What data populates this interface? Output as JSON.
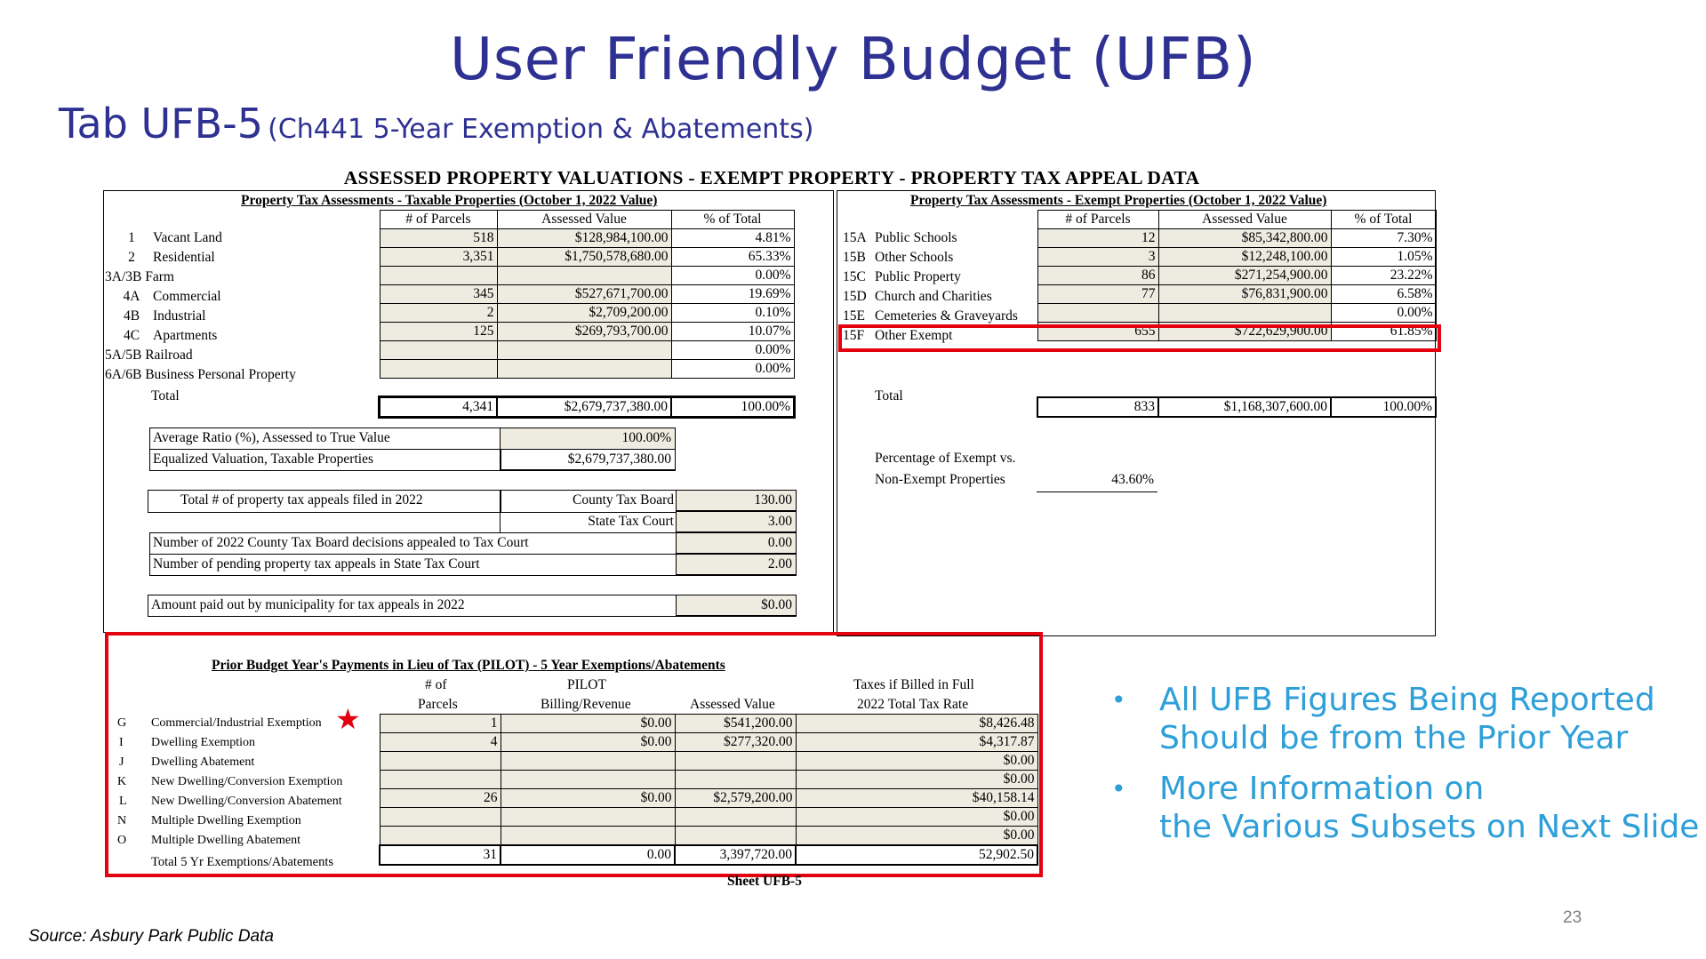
{
  "slide": {
    "title": "User Friendly Budget (UFB)",
    "subtitle_main": "Tab UFB-5",
    "subtitle_paren": "(Ch441 5-Year Exemption & Abatements)",
    "page_number": "23",
    "source": "Source: Asbury Park Public Data"
  },
  "sheet": {
    "header": "ASSESSED PROPERTY VALUATIONS - EXEMPT PROPERTY - PROPERTY TAX APPEAL DATA",
    "footer": "Sheet UFB-5"
  },
  "taxable": {
    "title": "Property Tax Assessments - Taxable Properties (October 1, 2022 Value)",
    "columns": [
      "# of Parcels",
      "Assessed Value",
      "% of Total"
    ],
    "rows": [
      {
        "code": "1",
        "label": "Vacant Land",
        "parcels": "518",
        "value": "$128,984,100.00",
        "pct": "4.81%"
      },
      {
        "code": "2",
        "label": "Residential",
        "parcels": "3,351",
        "value": "$1,750,578,680.00",
        "pct": "65.33%"
      },
      {
        "code": "3A/3B",
        "label": "Farm",
        "parcels": "",
        "value": "",
        "pct": "0.00%"
      },
      {
        "code": "4A",
        "label": "Commercial",
        "parcels": "345",
        "value": "$527,671,700.00",
        "pct": "19.69%"
      },
      {
        "code": "4B",
        "label": "Industrial",
        "parcels": "2",
        "value": "$2,709,200.00",
        "pct": "0.10%"
      },
      {
        "code": "4C",
        "label": "Apartments",
        "parcels": "125",
        "value": "$269,793,700.00",
        "pct": "10.07%"
      },
      {
        "code": "5A/5B",
        "label": "Railroad",
        "parcels": "",
        "value": "",
        "pct": "0.00%"
      },
      {
        "code": "6A/6B",
        "label": "Business Personal Property",
        "parcels": "",
        "value": "",
        "pct": "0.00%"
      }
    ],
    "total": {
      "label": "Total",
      "parcels": "4,341",
      "value": "$2,679,737,380.00",
      "pct": "100.00%"
    },
    "avg_ratio_label": "Average Ratio (%), Assessed to True Value",
    "avg_ratio_value": "100.00%",
    "equalized_label": "Equalized Valuation, Taxable Properties",
    "equalized_value": "$2,679,737,380.00",
    "appeals_label": "Total # of property tax appeals filed in 2022",
    "county_board_label": "County Tax Board",
    "county_board_value": "130.00",
    "state_court_label": "State Tax Court",
    "state_court_value": "3.00",
    "decisions_label": "Number of 2022 County Tax Board decisions appealed to Tax Court",
    "decisions_value": "0.00",
    "pending_label": "Number of pending property tax appeals in State Tax Court",
    "pending_value": "2.00",
    "paid_label": "Amount paid out by municipality for tax appeals in 2022",
    "paid_value": "$0.00"
  },
  "exempt": {
    "title": "Property Tax Assessments - Exempt Properties (October 1, 2022 Value)",
    "columns": [
      "# of Parcels",
      "Assessed Value",
      "% of Total"
    ],
    "rows": [
      {
        "code": "15A",
        "label": "Public Schools",
        "parcels": "12",
        "value": "$85,342,800.00",
        "pct": "7.30%"
      },
      {
        "code": "15B",
        "label": "Other Schools",
        "parcels": "3",
        "value": "$12,248,100.00",
        "pct": "1.05%"
      },
      {
        "code": "15C",
        "label": "Public Property",
        "parcels": "86",
        "value": "$271,254,900.00",
        "pct": "23.22%"
      },
      {
        "code": "15D",
        "label": "Church and Charities",
        "parcels": "77",
        "value": "$76,831,900.00",
        "pct": "6.58%"
      },
      {
        "code": "15E",
        "label": "Cemeteries & Graveyards",
        "parcels": "",
        "value": "",
        "pct": "0.00%"
      },
      {
        "code": "15F",
        "label": "Other Exempt",
        "parcels": "655",
        "value": "$722,629,900.00",
        "pct": "61.85%"
      }
    ],
    "total": {
      "label": "Total",
      "parcels": "833",
      "value": "$1,168,307,600.00",
      "pct": "100.00%"
    },
    "pct_label_1": "Percentage of Exempt vs.",
    "pct_label_2": "Non-Exempt Properties",
    "pct_value": "43.60%"
  },
  "pilot": {
    "title": "Prior Budget Year's Payments in Lieu of Tax (PILOT) - 5 Year Exemptions/Abatements",
    "col_parcels_1": "# of",
    "col_parcels_2": "Parcels",
    "col_pilot_1": "PILOT",
    "col_pilot_2": "Billing/Revenue",
    "col_assessed": "Assessed Value",
    "col_taxes_1": "Taxes if Billed in Full",
    "col_taxes_2": "2022 Total Tax Rate",
    "rows": [
      {
        "code": "G",
        "label": "Commercial/Industrial Exemption",
        "parcels": "1",
        "pilot": "$0.00",
        "assessed": "$541,200.00",
        "taxes": "$8,426.48"
      },
      {
        "code": "I",
        "label": "Dwelling Exemption",
        "parcels": "4",
        "pilot": "$0.00",
        "assessed": "$277,320.00",
        "taxes": "$4,317.87"
      },
      {
        "code": "J",
        "label": "Dwelling Abatement",
        "parcels": "",
        "pilot": "",
        "assessed": "",
        "taxes": "$0.00"
      },
      {
        "code": "K",
        "label": "New Dwelling/Conversion Exemption",
        "parcels": "",
        "pilot": "",
        "assessed": "",
        "taxes": "$0.00"
      },
      {
        "code": "L",
        "label": "New Dwelling/Conversion Abatement",
        "parcels": "26",
        "pilot": "$0.00",
        "assessed": "$2,579,200.00",
        "taxes": "$40,158.14"
      },
      {
        "code": "N",
        "label": "Multiple Dwelling Exemption",
        "parcels": "",
        "pilot": "",
        "assessed": "",
        "taxes": "$0.00"
      },
      {
        "code": "O",
        "label": "Multiple Dwelling Abatement",
        "parcels": "",
        "pilot": "",
        "assessed": "",
        "taxes": "$0.00"
      }
    ],
    "total": {
      "label": "Total 5 Yr Exemptions/Abatements",
      "parcels": "31",
      "pilot": "0.00",
      "assessed": "3,397,720.00",
      "taxes": "52,902.50"
    }
  },
  "bullets": [
    {
      "line1": "All UFB Figures Being Reported",
      "line2": "Should be from the Prior Year"
    },
    {
      "line1": "More Information on",
      "line2": "the Various Subsets on Next Slide"
    }
  ],
  "colors": {
    "title_blue": "#2e3192",
    "bullet_blue": "#2e9fd8",
    "highlight_red": "#e3000f",
    "cell_shade": "#eeece1"
  },
  "icons": {
    "star": "red-star-icon",
    "bullet": "bullet-dot-icon"
  }
}
